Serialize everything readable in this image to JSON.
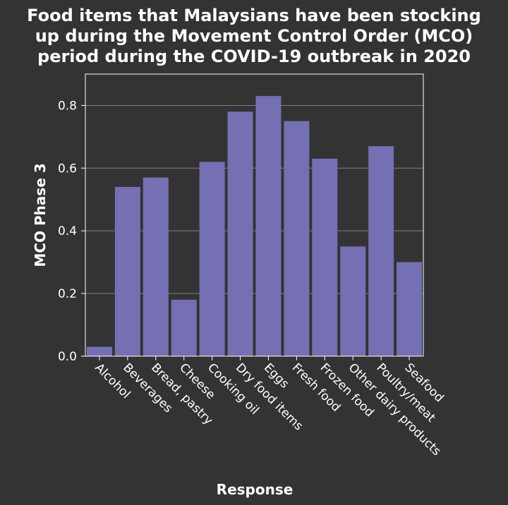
{
  "chart_data": {
    "type": "bar",
    "title_lines": [
      "Food items that Malaysians have been stocking",
      "up during the Movement Control Order (MCO)",
      "period during the COVID-19 outbreak in 2020"
    ],
    "xlabel": "Response",
    "ylabel": "MCO Phase 3",
    "categories": [
      "Alcohol",
      "Beverages",
      "Bread, pastry",
      "Cheese",
      "Cooking oil",
      "Dry food items",
      "Eggs",
      "Fresh food",
      "Frozen food",
      "Other dairy products",
      "Poultry/meat",
      "Seafood"
    ],
    "values": [
      0.03,
      0.54,
      0.57,
      0.18,
      0.62,
      0.78,
      0.83,
      0.75,
      0.63,
      0.35,
      0.67,
      0.3
    ],
    "ylim": [
      0,
      0.9
    ],
    "yticks": [
      0.0,
      0.2,
      0.4,
      0.6,
      0.8
    ],
    "ytick_labels": [
      "0.0",
      "0.2",
      "0.4",
      "0.6",
      "0.8"
    ],
    "grid": true,
    "colors": {
      "background": "#333333",
      "bar": "#7570b3",
      "grid": "#7f7f7f",
      "text": "#ffffff"
    }
  }
}
